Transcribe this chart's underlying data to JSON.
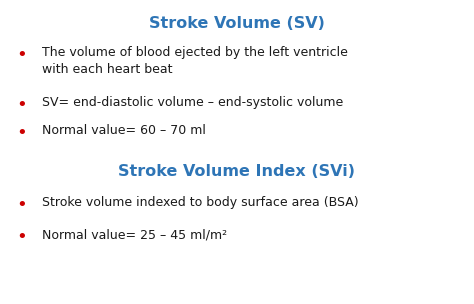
{
  "background_color": "#ffffff",
  "title1": "Stroke Volume (SV)",
  "title2": "Stroke Volume Index (SVi)",
  "title_color": "#2E75B6",
  "title_fontsize": 11.5,
  "bullet_color": "#CC0000",
  "text_color": "#1a1a1a",
  "text_fontsize": 9.0,
  "bullet_fontsize": 13,
  "bullets_section1_line1a": "The volume of blood ejected by the left ventricle",
  "bullets_section1_line1b": "with each heart beat",
  "bullets_section1_line2": "SV= end-diastolic volume – end-systolic volume",
  "bullets_section1_line3": "Normal value= 60 – 70 ml",
  "bullets_section2_line1": "Stroke volume indexed to body surface area (BSA)",
  "bullets_section2_line2": "Normal value= 25 – 45 ml/m²"
}
